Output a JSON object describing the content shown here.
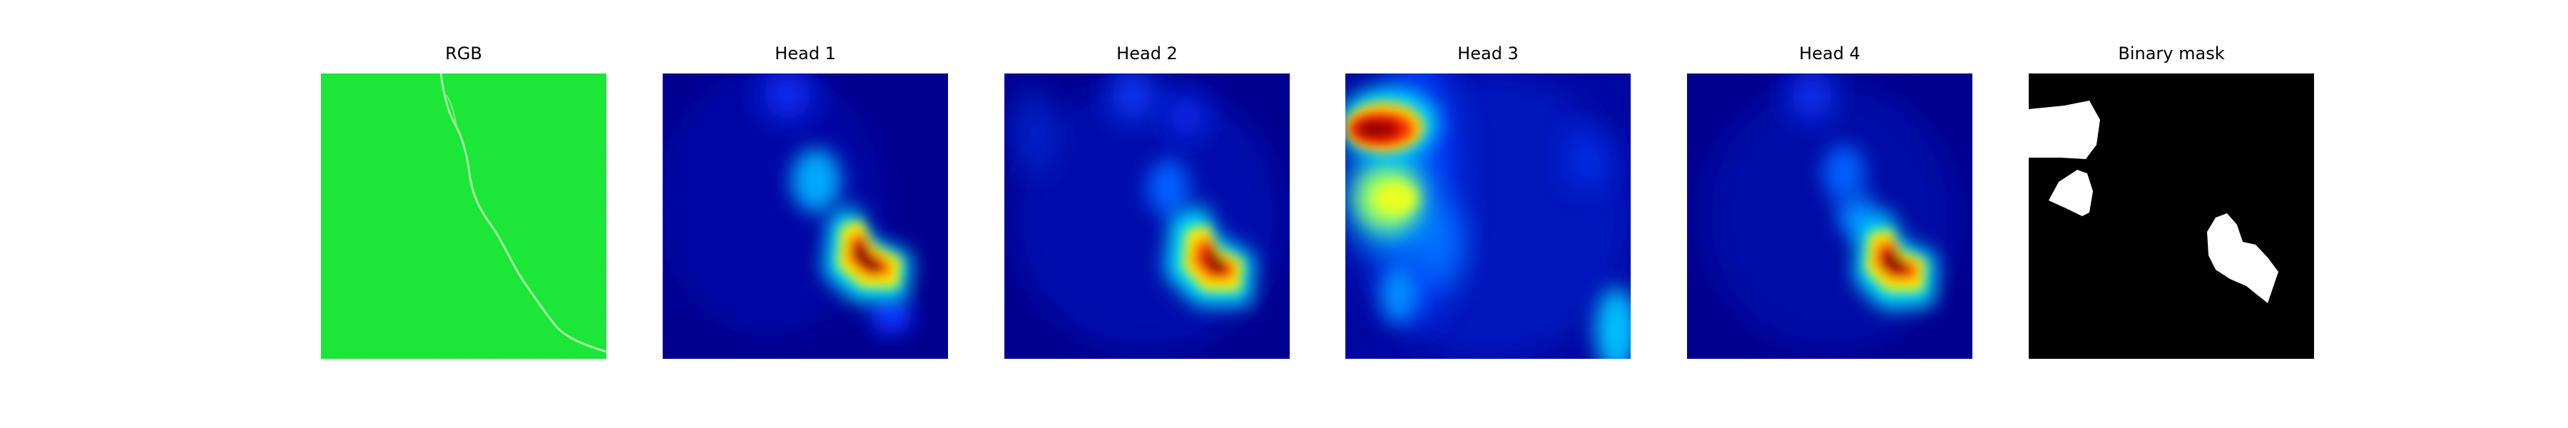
{
  "panels": [
    {
      "title": "RGB"
    },
    {
      "title": "Head 1"
    },
    {
      "title": "Head 2"
    },
    {
      "title": "Head 3"
    },
    {
      "title": "Head 4"
    },
    {
      "title": "Binary mask"
    }
  ],
  "colors": {
    "rgb_green": "#19e633",
    "jet_background": "#00008f",
    "mask_background": "#000000",
    "mask_foreground": "#ffffff"
  }
}
